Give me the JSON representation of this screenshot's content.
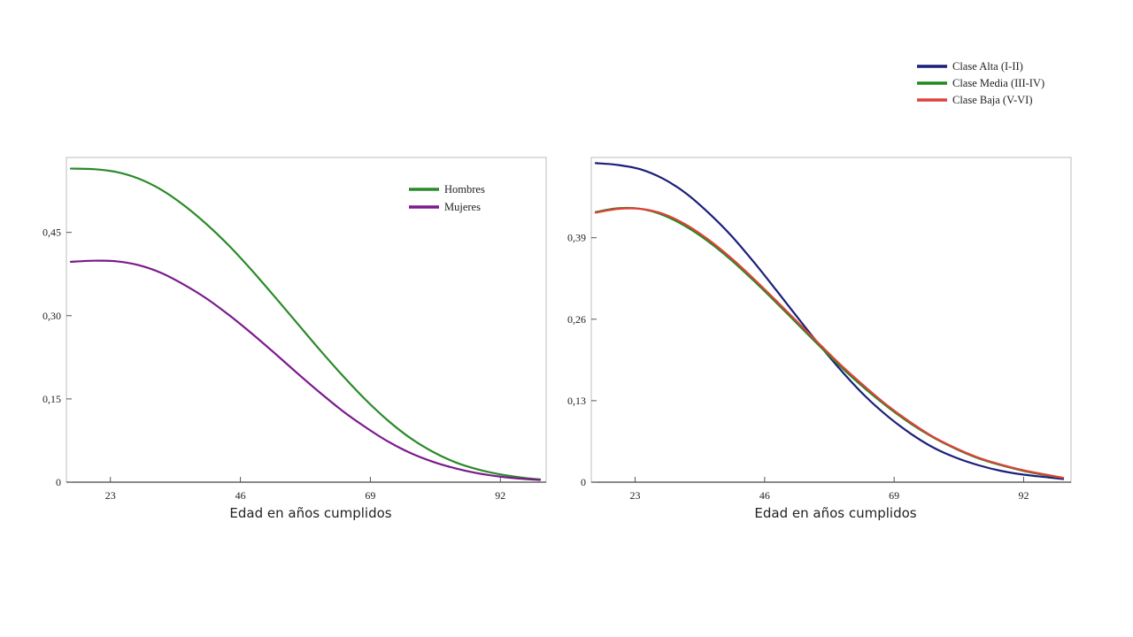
{
  "chart_data": [
    {
      "type": "line",
      "xlabel": "Edad en años cumplidos",
      "ylabel": "",
      "xlim": [
        16,
        99
      ],
      "ylim": [
        0,
        0.585
      ],
      "xticks": [
        23,
        46,
        69,
        92
      ],
      "xtick_labels": [
        "23",
        "46",
        "69",
        "92"
      ],
      "yticks": [
        0,
        0.15,
        0.3,
        0.45
      ],
      "ytick_labels": [
        "0",
        "0,15",
        "0,30",
        "0,45"
      ],
      "legend": "top-right inside plot",
      "series": [
        {
          "name": "Hombres",
          "color": "#2a8a2a",
          "x": [
            16,
            20,
            24,
            28,
            32,
            36,
            40,
            44,
            48,
            52,
            56,
            60,
            64,
            68,
            72,
            76,
            80,
            84,
            88,
            92,
            96,
            99
          ],
          "y": [
            0.565,
            0.564,
            0.559,
            0.547,
            0.527,
            0.499,
            0.465,
            0.426,
            0.382,
            0.335,
            0.287,
            0.239,
            0.193,
            0.15,
            0.112,
            0.08,
            0.055,
            0.036,
            0.023,
            0.014,
            0.008,
            0.005
          ]
        },
        {
          "name": "Mujeres",
          "color": "#7b1a8c",
          "x": [
            16,
            20,
            24,
            28,
            32,
            36,
            40,
            44,
            48,
            52,
            56,
            60,
            64,
            68,
            72,
            76,
            80,
            84,
            88,
            92,
            96,
            99
          ],
          "y": [
            0.397,
            0.399,
            0.398,
            0.391,
            0.377,
            0.356,
            0.331,
            0.301,
            0.268,
            0.233,
            0.197,
            0.162,
            0.129,
            0.1,
            0.074,
            0.053,
            0.037,
            0.025,
            0.016,
            0.01,
            0.006,
            0.004
          ]
        }
      ]
    },
    {
      "type": "line",
      "xlabel": "Edad en años cumplidos",
      "ylabel": "",
      "xlim": [
        16,
        99
      ],
      "ylim": [
        0,
        0.518
      ],
      "xticks": [
        23,
        46,
        69,
        92
      ],
      "xtick_labels": [
        "23",
        "46",
        "69",
        "92"
      ],
      "yticks": [
        0,
        0.13,
        0.26,
        0.39
      ],
      "ytick_labels": [
        "0",
        "0,13",
        "0,26",
        "0,39"
      ],
      "legend": "top-right, above plot",
      "series": [
        {
          "name": "Clase Alta (I-II)",
          "color": "#1a1f7a",
          "x": [
            16,
            20,
            24,
            28,
            32,
            36,
            40,
            44,
            48,
            52,
            56,
            60,
            64,
            68,
            72,
            76,
            80,
            84,
            88,
            92,
            96,
            99
          ],
          "y": [
            0.509,
            0.506,
            0.499,
            0.484,
            0.461,
            0.43,
            0.394,
            0.352,
            0.307,
            0.261,
            0.216,
            0.174,
            0.136,
            0.104,
            0.077,
            0.055,
            0.039,
            0.027,
            0.018,
            0.012,
            0.008,
            0.005
          ]
        },
        {
          "name": "Clase Media (III-IV)",
          "color": "#1f8a1f",
          "x": [
            16,
            20,
            24,
            28,
            32,
            36,
            40,
            44,
            48,
            52,
            56,
            60,
            64,
            68,
            72,
            76,
            80,
            84,
            88,
            92,
            96,
            99
          ],
          "y": [
            0.431,
            0.437,
            0.436,
            0.426,
            0.408,
            0.384,
            0.355,
            0.322,
            0.287,
            0.251,
            0.215,
            0.18,
            0.148,
            0.119,
            0.093,
            0.071,
            0.053,
            0.038,
            0.027,
            0.018,
            0.011,
            0.007
          ]
        },
        {
          "name": "Clase Baja (V-VI)",
          "color": "#e0403a",
          "x": [
            16,
            20,
            24,
            28,
            32,
            36,
            40,
            44,
            48,
            52,
            56,
            60,
            64,
            68,
            72,
            76,
            80,
            84,
            88,
            92,
            96,
            99
          ],
          "y": [
            0.43,
            0.436,
            0.436,
            0.428,
            0.411,
            0.387,
            0.358,
            0.325,
            0.29,
            0.254,
            0.218,
            0.183,
            0.151,
            0.121,
            0.095,
            0.072,
            0.054,
            0.039,
            0.028,
            0.019,
            0.012,
            0.007
          ]
        }
      ]
    }
  ]
}
